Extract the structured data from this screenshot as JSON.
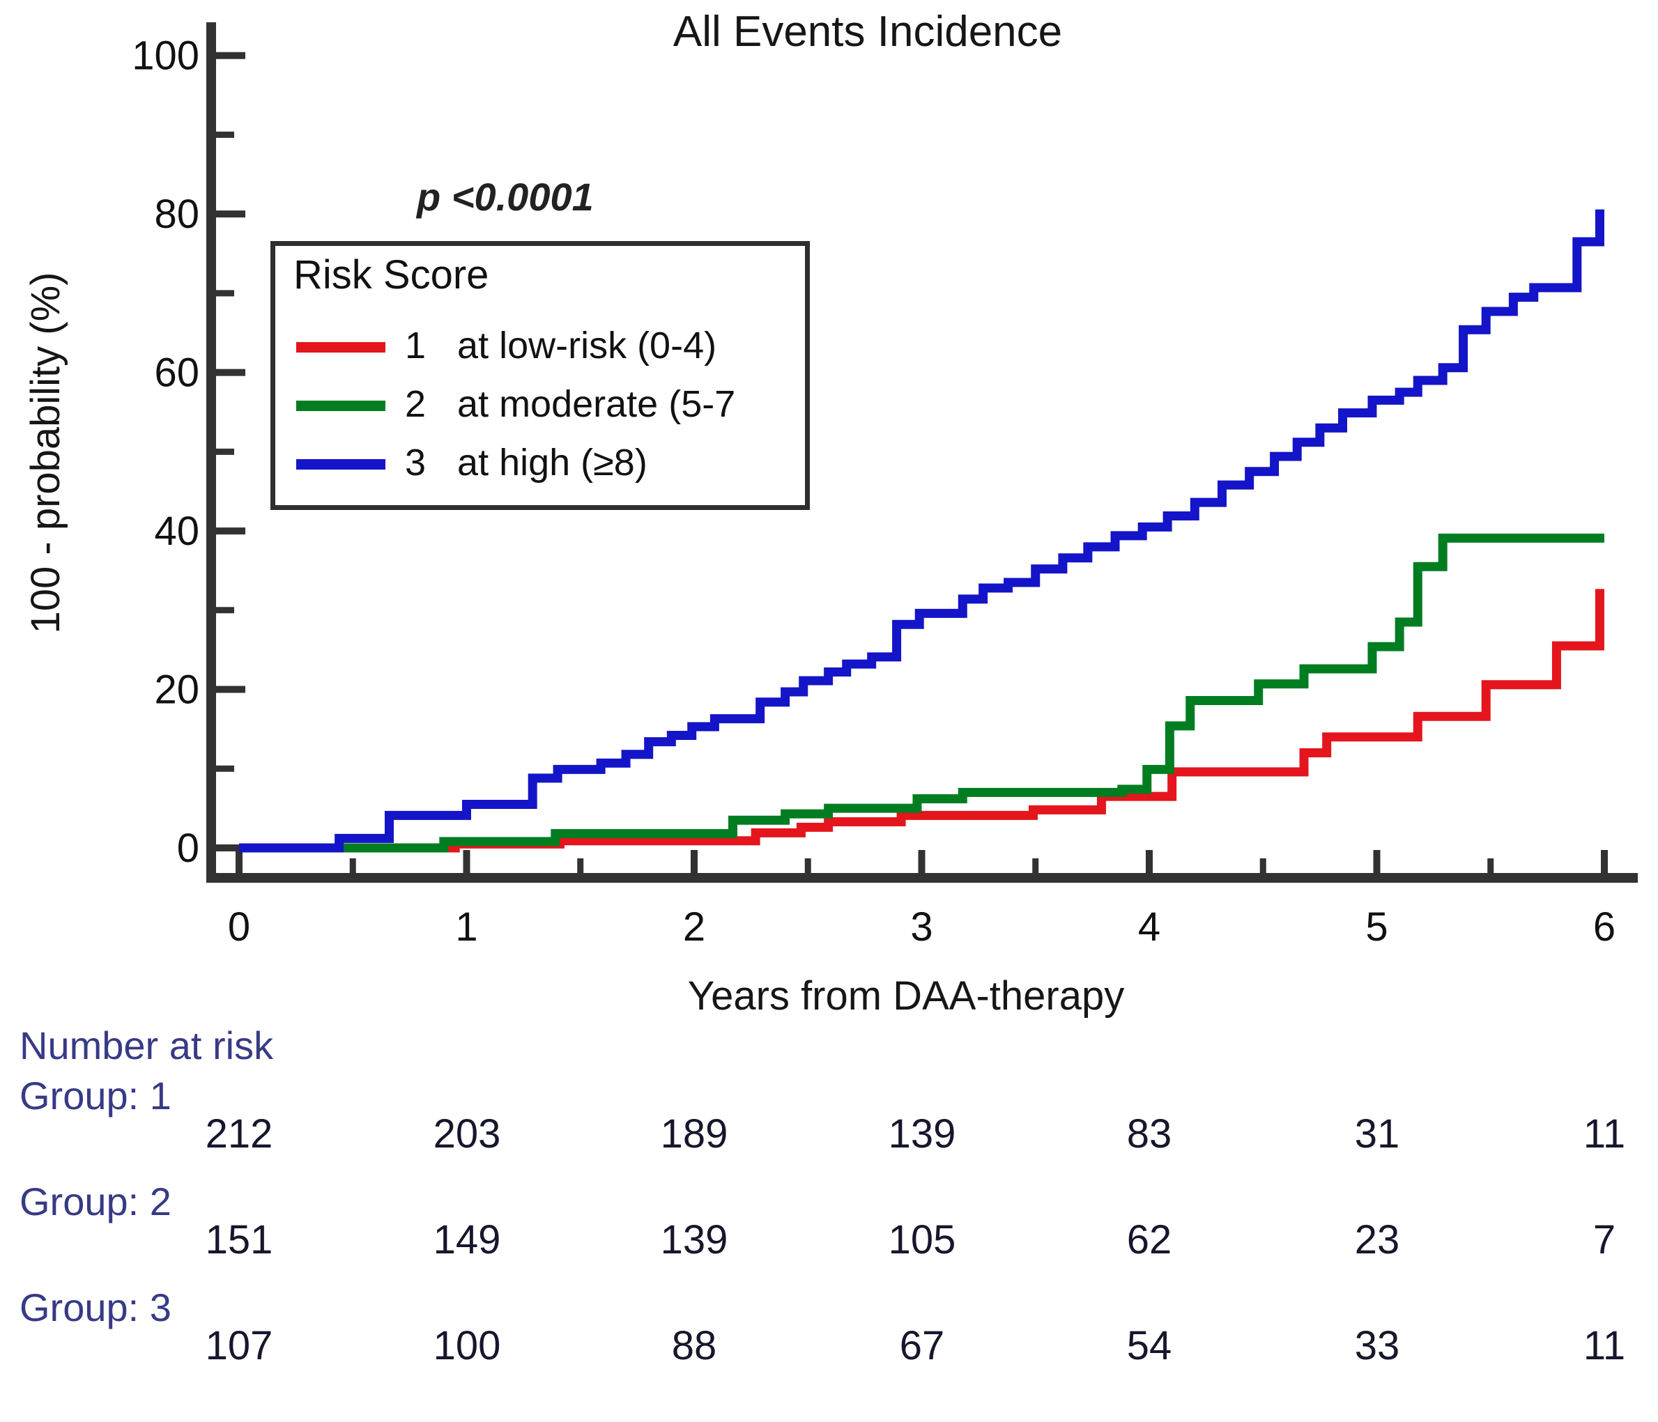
{
  "figure": {
    "title": "All Events Incidence",
    "p_value": "p <0.0001",
    "x_axis_label": "Years from DAA-therapy",
    "y_axis_label": "100 -  probability (%)",
    "legend": {
      "title": "Risk Score",
      "items": [
        {
          "label": "1   at low-risk (0-4)",
          "color": "#e4151c"
        },
        {
          "label": "2   at moderate (5-7",
          "color": "#007d21"
        },
        {
          "label": "3   at high (≥8)",
          "color": "#1414c8"
        }
      ]
    }
  },
  "chart_data": {
    "type": "line",
    "subtype": "step",
    "title": "All Events Incidence",
    "annotation": "p <0.0001",
    "xlabel": "Years from DAA-therapy",
    "ylabel": "100 -  probability (%)",
    "xlim": [
      0,
      6
    ],
    "ylim": [
      0,
      100
    ],
    "x_ticks": [
      0,
      1,
      2,
      3,
      4,
      5,
      6
    ],
    "x_minor_ticks": [
      0.5,
      1.5,
      2.5,
      3.5,
      4.5,
      5.5
    ],
    "y_ticks": [
      0,
      20,
      40,
      60,
      80,
      100
    ],
    "y_minor_ticks": [
      10,
      30,
      50,
      70,
      90
    ],
    "grid": false,
    "legend_position": "upper-left",
    "series": [
      {
        "name": "1 at low-risk (0-4)",
        "group": "Group: 1",
        "color": "#e4151c",
        "points": [
          [
            0,
            0
          ],
          [
            0.95,
            0.5
          ],
          [
            1.41,
            0.9
          ],
          [
            2.27,
            1.9
          ],
          [
            2.47,
            2.6
          ],
          [
            2.59,
            3.3
          ],
          [
            2.91,
            4.1
          ],
          [
            3.49,
            4.8
          ],
          [
            3.79,
            6.5
          ],
          [
            4.1,
            9.6
          ],
          [
            4.68,
            12.0
          ],
          [
            4.78,
            14.0
          ],
          [
            5.18,
            16.6
          ],
          [
            5.48,
            20.6
          ],
          [
            5.79,
            25.5
          ],
          [
            5.98,
            32.1
          ]
        ]
      },
      {
        "name": "2 at moderate (5-7",
        "group": "Group: 2",
        "color": "#007d21",
        "points": [
          [
            0,
            0
          ],
          [
            0.9,
            0.8
          ],
          [
            1.39,
            1.8
          ],
          [
            2.17,
            3.5
          ],
          [
            2.4,
            4.3
          ],
          [
            2.59,
            5.0
          ],
          [
            2.98,
            6.2
          ],
          [
            3.18,
            7.0
          ],
          [
            3.88,
            7.4
          ],
          [
            3.99,
            9.9
          ],
          [
            4.09,
            15.4
          ],
          [
            4.18,
            18.6
          ],
          [
            4.48,
            20.7
          ],
          [
            4.68,
            22.6
          ],
          [
            4.98,
            25.4
          ],
          [
            5.1,
            28.5
          ],
          [
            5.18,
            35.5
          ],
          [
            5.29,
            39.1
          ]
        ]
      },
      {
        "name": "3 at high (≥8)",
        "group": "Group: 3",
        "color": "#1414c8",
        "points": [
          [
            0,
            0
          ],
          [
            0.44,
            1.2
          ],
          [
            0.66,
            4.1
          ],
          [
            1.0,
            5.5
          ],
          [
            1.29,
            8.8
          ],
          [
            1.4,
            9.9
          ],
          [
            1.59,
            10.7
          ],
          [
            1.7,
            11.8
          ],
          [
            1.8,
            13.4
          ],
          [
            1.9,
            14.2
          ],
          [
            1.99,
            15.3
          ],
          [
            2.09,
            16.3
          ],
          [
            2.29,
            18.4
          ],
          [
            2.4,
            19.7
          ],
          [
            2.48,
            21.1
          ],
          [
            2.59,
            22.2
          ],
          [
            2.67,
            23.2
          ],
          [
            2.78,
            24.1
          ],
          [
            2.89,
            28.2
          ],
          [
            2.99,
            29.6
          ],
          [
            3.18,
            31.4
          ],
          [
            3.27,
            32.8
          ],
          [
            3.38,
            33.5
          ],
          [
            3.5,
            35.2
          ],
          [
            3.62,
            36.6
          ],
          [
            3.73,
            38.0
          ],
          [
            3.85,
            39.4
          ],
          [
            3.97,
            40.5
          ],
          [
            4.08,
            41.9
          ],
          [
            4.2,
            43.6
          ],
          [
            4.32,
            45.8
          ],
          [
            4.44,
            47.5
          ],
          [
            4.55,
            49.4
          ],
          [
            4.65,
            51.2
          ],
          [
            4.75,
            53.0
          ],
          [
            4.85,
            54.9
          ],
          [
            4.98,
            56.5
          ],
          [
            5.1,
            57.5
          ],
          [
            5.18,
            59.0
          ],
          [
            5.29,
            60.6
          ],
          [
            5.38,
            65.4
          ],
          [
            5.48,
            67.7
          ],
          [
            5.6,
            69.5
          ],
          [
            5.69,
            70.7
          ],
          [
            5.88,
            76.5
          ],
          [
            5.98,
            80.0
          ]
        ]
      }
    ]
  },
  "risk_table": {
    "header": "Number at risk",
    "groups": [
      {
        "label": "Group: 1",
        "values": [
          "212",
          "203",
          "189",
          "139",
          "83",
          "31",
          "11"
        ]
      },
      {
        "label": "Group: 2",
        "values": [
          "151",
          "149",
          "139",
          "105",
          "62",
          "23",
          "7"
        ]
      },
      {
        "label": "Group: 3",
        "values": [
          "107",
          "100",
          "88",
          "67",
          "54",
          "33",
          "11"
        ]
      }
    ]
  }
}
